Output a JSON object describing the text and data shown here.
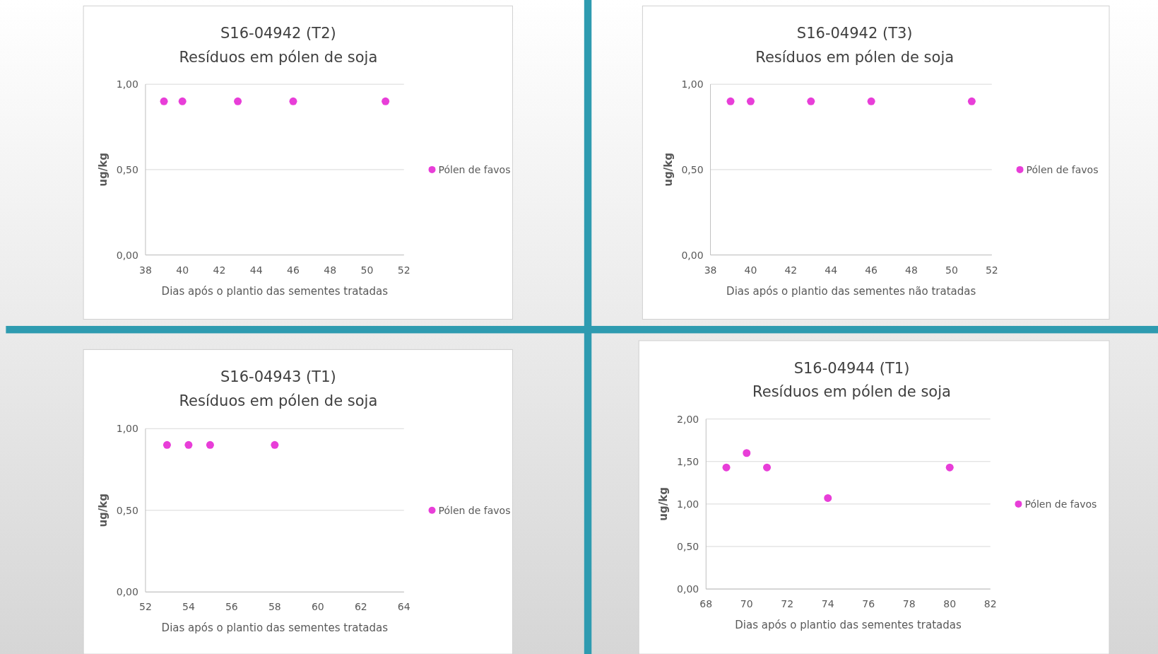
{
  "chart_data": [
    {
      "type": "scatter",
      "title": "S16-04942 (T2)",
      "subtitle": "Resíduos em pólen de soja",
      "xlabel": "Dias após o plantio das sementes tratadas",
      "ylabel": "ug/kg",
      "x": [
        39,
        40,
        43,
        46,
        51
      ],
      "series": [
        {
          "name": "Pólen de favos",
          "color": "#e83ed8",
          "values": [
            0.9,
            0.9,
            0.9,
            0.9,
            0.9
          ]
        }
      ],
      "xlim": [
        38,
        52
      ],
      "xticks": [
        38,
        40,
        42,
        44,
        46,
        48,
        50,
        52
      ],
      "ylim": [
        0,
        1
      ],
      "yticks": [
        {
          "value": 0,
          "label": "0,00"
        },
        {
          "value": 0.5,
          "label": "0,50"
        },
        {
          "value": 1,
          "label": "1,00"
        }
      ],
      "grid": "y",
      "legend": "right",
      "marker": "circle"
    },
    {
      "type": "scatter",
      "title": "S16-04942 (T3)",
      "subtitle": "Resíduos em pólen de soja",
      "xlabel": "Dias após o plantio das sementes não tratadas",
      "ylabel": "ug/kg",
      "x": [
        39,
        40,
        43,
        46,
        51
      ],
      "series": [
        {
          "name": "Pólen de favos",
          "color": "#e83ed8",
          "values": [
            0.9,
            0.9,
            0.9,
            0.9,
            0.9
          ]
        }
      ],
      "xlim": [
        38,
        52
      ],
      "xticks": [
        38,
        40,
        42,
        44,
        46,
        48,
        50,
        52
      ],
      "ylim": [
        0,
        1
      ],
      "yticks": [
        {
          "value": 0,
          "label": "0,00"
        },
        {
          "value": 0.5,
          "label": "0,50"
        },
        {
          "value": 1,
          "label": "1,00"
        }
      ],
      "grid": "y",
      "legend": "right",
      "marker": "circle"
    },
    {
      "type": "scatter",
      "title": "S16-04943 (T1)",
      "subtitle": "Resíduos em pólen de soja",
      "xlabel": "Dias após o plantio das sementes tratadas",
      "ylabel": "ug/kg",
      "x": [
        53,
        54,
        55,
        58
      ],
      "series": [
        {
          "name": "Pólen de favos",
          "color": "#e83ed8",
          "values": [
            0.9,
            0.9,
            0.9,
            0.9
          ]
        }
      ],
      "xlim": [
        52,
        64
      ],
      "xticks": [
        52,
        54,
        56,
        58,
        60,
        62,
        64
      ],
      "ylim": [
        0,
        1
      ],
      "yticks": [
        {
          "value": 0,
          "label": "0,00"
        },
        {
          "value": 0.5,
          "label": "0,50"
        },
        {
          "value": 1,
          "label": "1,00"
        }
      ],
      "grid": "y",
      "legend": "right",
      "marker": "circle"
    },
    {
      "type": "scatter",
      "title": "S16-04944 (T1)",
      "subtitle": "Resíduos em pólen de soja",
      "xlabel": "Dias após o plantio das sementes tratadas",
      "ylabel": "ug/kg",
      "x": [
        69,
        70,
        71,
        74,
        80
      ],
      "series": [
        {
          "name": "Pólen de favos",
          "color": "#e83ed8",
          "values": [
            1.43,
            1.6,
            1.43,
            1.07,
            1.43
          ]
        }
      ],
      "xlim": [
        68,
        82
      ],
      "xticks": [
        68,
        70,
        72,
        74,
        76,
        78,
        80,
        82
      ],
      "ylim": [
        0,
        2
      ],
      "yticks": [
        {
          "value": 0,
          "label": "0,00"
        },
        {
          "value": 0.5,
          "label": "0,50"
        },
        {
          "value": 1,
          "label": "1,00"
        },
        {
          "value": 1.5,
          "label": "1,50"
        },
        {
          "value": 2,
          "label": "2,00"
        }
      ],
      "grid": "y",
      "legend": "right",
      "marker": "circle"
    }
  ]
}
